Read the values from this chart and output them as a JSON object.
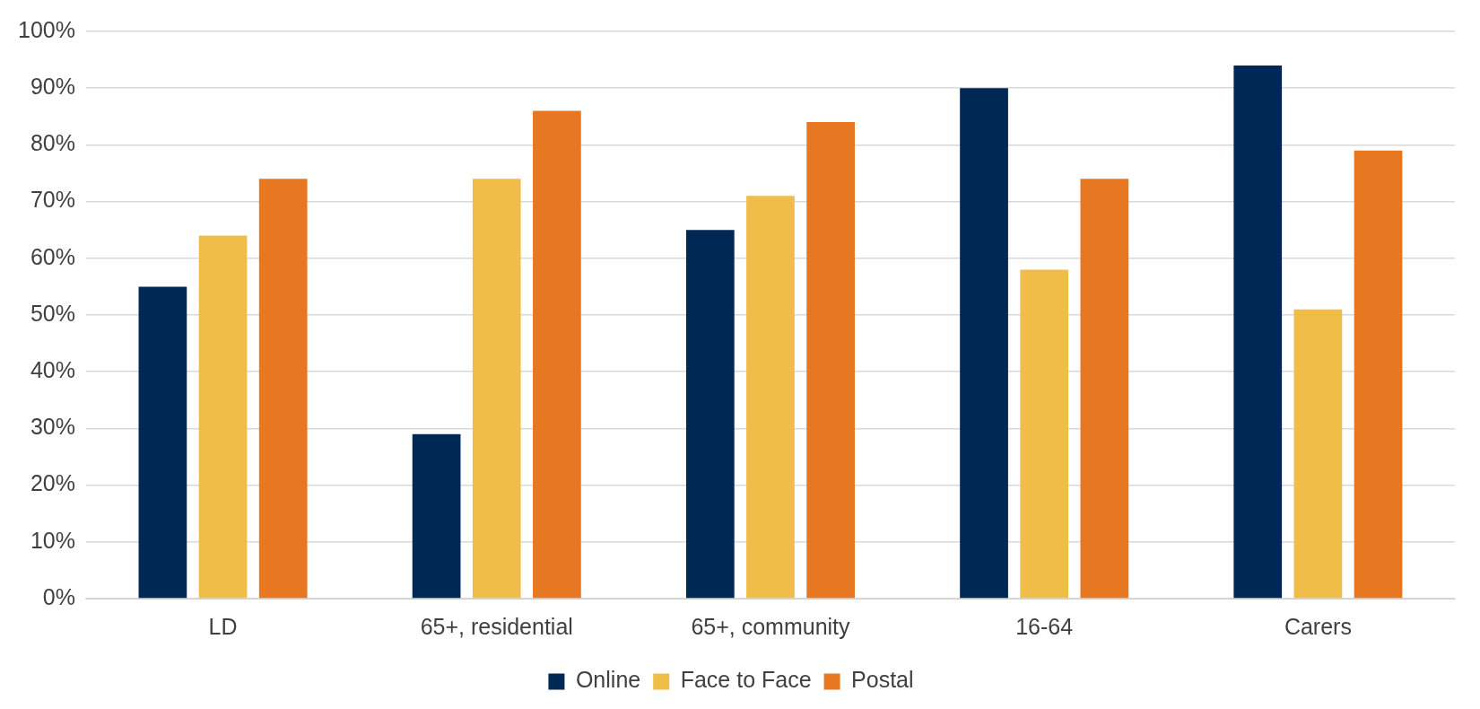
{
  "chart_data": {
    "type": "bar",
    "categories": [
      "LD",
      "65+, residential",
      "65+, community",
      "16-64",
      "Carers"
    ],
    "series": [
      {
        "name": "Online",
        "color": "#002855",
        "values": [
          55,
          29,
          65,
          90,
          94
        ]
      },
      {
        "name": "Face to Face",
        "color": "#f0be48",
        "values": [
          64,
          74,
          71,
          58,
          51
        ]
      },
      {
        "name": "Postal",
        "color": "#e87722",
        "values": [
          74,
          86,
          84,
          74,
          79
        ]
      }
    ],
    "ylim": [
      0,
      100
    ],
    "yticks": [
      {
        "value": 0,
        "label": "0%"
      },
      {
        "value": 10,
        "label": "10%"
      },
      {
        "value": 20,
        "label": "20%"
      },
      {
        "value": 30,
        "label": "30%"
      },
      {
        "value": 40,
        "label": "40%"
      },
      {
        "value": 50,
        "label": "50%"
      },
      {
        "value": 60,
        "label": "60%"
      },
      {
        "value": 70,
        "label": "70%"
      },
      {
        "value": 80,
        "label": "80%"
      },
      {
        "value": 90,
        "label": "90%"
      },
      {
        "value": 100,
        "label": "100%"
      }
    ],
    "grid": "y",
    "legend": "bottom"
  }
}
